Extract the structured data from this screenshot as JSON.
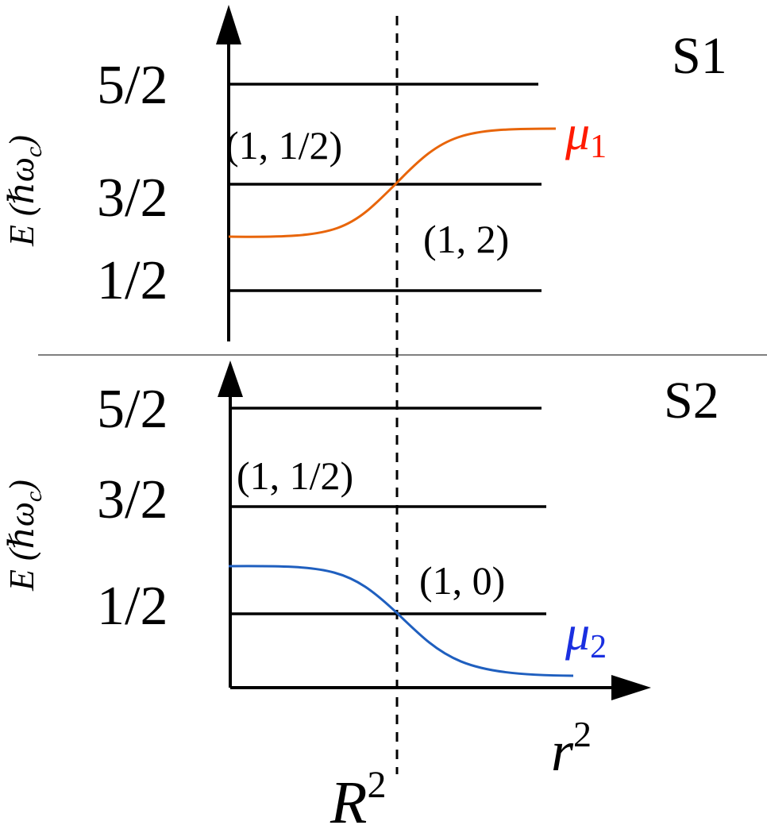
{
  "panels": [
    {
      "label": "S1",
      "y_axis_label": "E (ℏω",
      "y_axis_sub": "c",
      "y_axis_close": ")",
      "ticks": [
        "5/2",
        "3/2",
        "1/2"
      ],
      "regions": [
        "(1, 1/2)",
        "(1, 2)"
      ],
      "curve": {
        "name": "μ",
        "sub": "1",
        "color": "#e8650a",
        "label_color": "#ff1a00",
        "direction": "rising"
      }
    },
    {
      "label": "S2",
      "y_axis_label": "E (ℏω",
      "y_axis_sub": "c",
      "y_axis_close": ")",
      "ticks": [
        "5/2",
        "3/2",
        "1/2"
      ],
      "regions": [
        "(1, 1/2)",
        "(1, 0)"
      ],
      "curve": {
        "name": "μ",
        "sub": "2",
        "color": "#1f5fbf",
        "label_color": "#1a2fe0",
        "direction": "falling"
      }
    }
  ],
  "x_axis": {
    "base": "r",
    "sup": "2"
  },
  "marker": {
    "base": "R",
    "sup": "2"
  },
  "colors": {
    "line": "#000000",
    "mu1": "#e8650a",
    "mu2": "#1f5fbf"
  }
}
